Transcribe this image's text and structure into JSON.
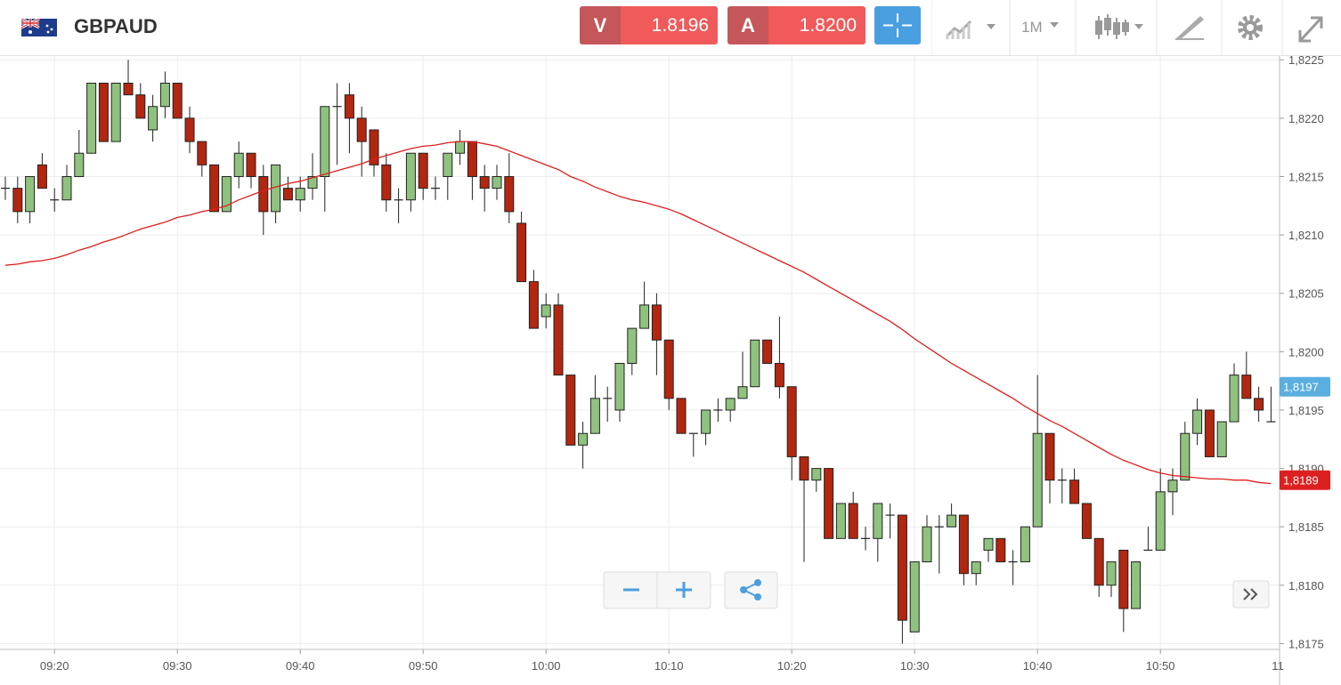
{
  "header": {
    "symbol": "GBPAUD",
    "sell_label": "V",
    "sell_price": "1.8196",
    "buy_label": "A",
    "buy_price": "1.8200",
    "timeframe": "1M"
  },
  "chart_data": {
    "type": "candlestick",
    "categories": [
      null,
      null,
      null,
      null,
      "09:20",
      null,
      null,
      null,
      null,
      null,
      null,
      null,
      null,
      null,
      "09:30",
      null,
      null,
      null,
      null,
      null,
      null,
      null,
      null,
      null,
      "09:40",
      null,
      null,
      null,
      null,
      null,
      null,
      null,
      null,
      null,
      "09:50",
      null,
      null,
      null,
      null,
      null,
      null,
      null,
      null,
      null,
      "10:00",
      null,
      null,
      null,
      null,
      null,
      null,
      null,
      null,
      null,
      "10:10",
      null,
      null,
      null,
      null,
      null,
      null,
      null,
      null,
      null,
      "10:20",
      null,
      null,
      null,
      null,
      null,
      null,
      null,
      null,
      null,
      "10:30",
      null,
      null,
      null,
      null,
      null,
      null,
      null,
      null,
      null,
      "10:40",
      null,
      null,
      null,
      null,
      null,
      null,
      null,
      null,
      null,
      "10:50",
      null,
      null,
      null,
      null,
      null,
      null,
      null,
      null,
      null
    ],
    "x_edge_label": "11",
    "open": [
      1.8214,
      1.8214,
      1.8212,
      1.8216,
      1.8213,
      1.8213,
      1.8215,
      1.8217,
      1.8223,
      1.8218,
      1.8223,
      1.8222,
      1.8219,
      1.8221,
      1.8223,
      1.822,
      1.8218,
      1.8216,
      1.8212,
      1.8215,
      1.8217,
      1.8215,
      1.8212,
      1.8214,
      1.8213,
      1.8214,
      1.8215,
      1.8221,
      1.8222,
      1.822,
      1.8219,
      1.8216,
      1.8213,
      1.8213,
      1.8217,
      1.8214,
      1.8215,
      1.8217,
      1.8218,
      1.8215,
      1.8214,
      1.8215,
      1.8211,
      1.8206,
      1.8203,
      1.8204,
      1.8198,
      1.8192,
      1.8193,
      1.8196,
      1.8195,
      1.8199,
      1.8202,
      1.8204,
      1.8201,
      1.8196,
      1.8193,
      1.8193,
      1.8195,
      1.8195,
      1.8196,
      1.8197,
      1.8201,
      1.8199,
      1.8197,
      1.8191,
      1.8189,
      1.819,
      1.8184,
      1.8187,
      1.8184,
      1.8184,
      1.8186,
      1.8186,
      1.8176,
      1.8182,
      1.8185,
      1.8185,
      1.8186,
      1.8181,
      1.8183,
      1.8184,
      1.8182,
      1.8182,
      1.8185,
      1.8193,
      1.8189,
      1.8189,
      1.8187,
      1.8184,
      1.818,
      1.8183,
      1.8178,
      1.8183,
      1.8183,
      1.8188,
      1.8189,
      1.8193,
      1.8195,
      1.8191,
      1.8194,
      1.8198,
      1.8196,
      1.8194
    ],
    "high": [
      1.8215,
      1.8215,
      1.8215,
      1.8217,
      1.8214,
      1.8216,
      1.8219,
      1.8223,
      1.8223,
      1.8223,
      1.8225,
      1.8223,
      1.8222,
      1.8224,
      1.8223,
      1.8221,
      1.8218,
      1.8216,
      1.8215,
      1.8218,
      1.8217,
      1.8216,
      1.8216,
      1.8215,
      1.8215,
      1.8217,
      1.8221,
      1.8223,
      1.8223,
      1.8221,
      1.8219,
      1.8217,
      1.8214,
      1.8217,
      1.8217,
      1.8215,
      1.8217,
      1.8219,
      1.8218,
      1.8216,
      1.8216,
      1.8217,
      1.8212,
      1.8207,
      1.8205,
      1.8205,
      1.8198,
      1.8194,
      1.8198,
      1.8197,
      1.8199,
      1.8202,
      1.8206,
      1.8205,
      1.8201,
      1.8196,
      1.8193,
      1.8195,
      1.8196,
      1.8196,
      1.82,
      1.8201,
      1.8201,
      1.8203,
      1.8197,
      1.8191,
      1.819,
      1.819,
      1.8187,
      1.8188,
      1.8185,
      1.8187,
      1.8187,
      1.8186,
      1.8182,
      1.8186,
      1.8186,
      1.8187,
      1.8186,
      1.8182,
      1.8184,
      1.8184,
      1.8183,
      1.8185,
      1.8198,
      1.8193,
      1.819,
      1.819,
      1.8187,
      1.8184,
      1.8182,
      1.8183,
      1.8182,
      1.8185,
      1.819,
      1.819,
      1.8194,
      1.8196,
      1.8195,
      1.8194,
      1.8199,
      1.82,
      1.8197,
      1.8197
    ],
    "low": [
      1.8213,
      1.8211,
      1.8211,
      1.8214,
      1.8212,
      1.8213,
      1.8215,
      1.8217,
      1.8218,
      1.8218,
      1.8222,
      1.822,
      1.8218,
      1.822,
      1.822,
      1.8217,
      1.8215,
      1.8212,
      1.8212,
      1.8214,
      1.8214,
      1.821,
      1.8211,
      1.8213,
      1.8212,
      1.8213,
      1.8212,
      1.8216,
      1.8217,
      1.8215,
      1.8215,
      1.8212,
      1.8211,
      1.8212,
      1.8213,
      1.8213,
      1.8213,
      1.8216,
      1.8213,
      1.8212,
      1.8213,
      1.8211,
      1.8206,
      1.8202,
      1.8202,
      1.8198,
      1.8192,
      1.819,
      1.8193,
      1.8194,
      1.8194,
      1.8198,
      1.8202,
      1.8198,
      1.8195,
      1.8193,
      1.8191,
      1.8192,
      1.8194,
      1.8194,
      1.8196,
      1.8197,
      1.8199,
      1.8196,
      1.8189,
      1.8182,
      1.8188,
      1.8184,
      1.8184,
      1.8184,
      1.8183,
      1.8182,
      1.8184,
      1.8175,
      1.8176,
      1.8182,
      1.8181,
      1.8185,
      1.818,
      1.818,
      1.8182,
      1.8182,
      1.818,
      1.8182,
      1.8185,
      1.8187,
      1.8187,
      1.8187,
      1.8184,
      1.8179,
      1.8179,
      1.8176,
      1.8178,
      1.8183,
      1.8183,
      1.8186,
      1.8189,
      1.8192,
      1.8191,
      1.8191,
      1.8194,
      1.8196,
      1.8194,
      1.8194
    ],
    "close": [
      1.8214,
      1.8212,
      1.8215,
      1.8214,
      1.8213,
      1.8215,
      1.8217,
      1.8223,
      1.8218,
      1.8223,
      1.8222,
      1.822,
      1.8221,
      1.8223,
      1.822,
      1.8218,
      1.8216,
      1.8212,
      1.8215,
      1.8217,
      1.8215,
      1.8212,
      1.8216,
      1.8213,
      1.8214,
      1.8215,
      1.8221,
      1.8221,
      1.822,
      1.8218,
      1.8216,
      1.8213,
      1.8213,
      1.8217,
      1.8214,
      1.8214,
      1.8217,
      1.8218,
      1.8215,
      1.8214,
      1.8215,
      1.8212,
      1.8206,
      1.8202,
      1.8204,
      1.8198,
      1.8192,
      1.8193,
      1.8196,
      1.8196,
      1.8199,
      1.8202,
      1.8204,
      1.8201,
      1.8196,
      1.8193,
      1.8193,
      1.8195,
      1.8195,
      1.8196,
      1.8197,
      1.8201,
      1.8199,
      1.8197,
      1.8191,
      1.8189,
      1.819,
      1.8184,
      1.8187,
      1.8184,
      1.8184,
      1.8187,
      1.8186,
      1.8177,
      1.8182,
      1.8185,
      1.8185,
      1.8186,
      1.8181,
      1.8182,
      1.8184,
      1.8182,
      1.8182,
      1.8185,
      1.8193,
      1.8189,
      1.8189,
      1.8187,
      1.8184,
      1.818,
      1.8182,
      1.8178,
      1.8182,
      1.8183,
      1.8188,
      1.8189,
      1.8193,
      1.8195,
      1.8191,
      1.8194,
      1.8198,
      1.8196,
      1.8195,
      1.8194
    ],
    "up_color": "#8fc27e",
    "down_color": "#b3260f",
    "moving_average": {
      "color": "#dd1f1f",
      "values": [
        1.82074,
        1.82075,
        1.82077,
        1.82078,
        1.8208,
        1.82083,
        1.82087,
        1.8209,
        1.82094,
        1.82097,
        1.82101,
        1.82105,
        1.82108,
        1.82111,
        1.82115,
        1.82117,
        1.8212,
        1.82122,
        1.82125,
        1.8213,
        1.82134,
        1.82138,
        1.82141,
        1.82144,
        1.82146,
        1.82149,
        1.82152,
        1.82155,
        1.82158,
        1.82161,
        1.82165,
        1.82168,
        1.82171,
        1.82174,
        1.82176,
        1.82177,
        1.82179,
        1.8218,
        1.8218,
        1.82178,
        1.82176,
        1.82172,
        1.82168,
        1.82164,
        1.8216,
        1.82156,
        1.8215,
        1.82146,
        1.82141,
        1.82137,
        1.82133,
        1.8213,
        1.82128,
        1.82125,
        1.82122,
        1.82118,
        1.82113,
        1.82108,
        1.82103,
        1.82098,
        1.82093,
        1.82088,
        1.82083,
        1.82078,
        1.82073,
        1.82068,
        1.82062,
        1.82056,
        1.8205,
        1.82044,
        1.82038,
        1.82032,
        1.82026,
        1.82019,
        1.82011,
        1.82004,
        1.81997,
        1.8199,
        1.81984,
        1.81978,
        1.81972,
        1.81966,
        1.8196,
        1.81953,
        1.81947,
        1.81941,
        1.81936,
        1.8193,
        1.81924,
        1.81918,
        1.81912,
        1.81907,
        1.81903,
        1.81899,
        1.81896,
        1.81894,
        1.81893,
        1.81892,
        1.81891,
        1.81891,
        1.8189,
        1.8189,
        1.81888,
        1.81887
      ],
      "last_label": {
        "value": 1.8189,
        "label": "1,8189"
      }
    },
    "current_price": {
      "value": 1.8197,
      "label": "1,8197",
      "color": "#5aaee0"
    },
    "ylim": [
      1.81745,
      1.82254
    ],
    "yticks": [
      {
        "value": 1.8175,
        "label": "1,8175"
      },
      {
        "value": 1.818,
        "label": "1,8180"
      },
      {
        "value": 1.8185,
        "label": "1,8185"
      },
      {
        "value": 1.819,
        "label": "1,8190"
      },
      {
        "value": 1.8195,
        "label": "1,8195"
      },
      {
        "value": 1.82,
        "label": "1,8200"
      },
      {
        "value": 1.8205,
        "label": "1,8205"
      },
      {
        "value": 1.821,
        "label": "1,8210"
      },
      {
        "value": 1.8215,
        "label": "1,8215"
      },
      {
        "value": 1.822,
        "label": "1,8220"
      },
      {
        "value": 1.8225,
        "label": "1,8225"
      }
    ],
    "grid": true
  }
}
